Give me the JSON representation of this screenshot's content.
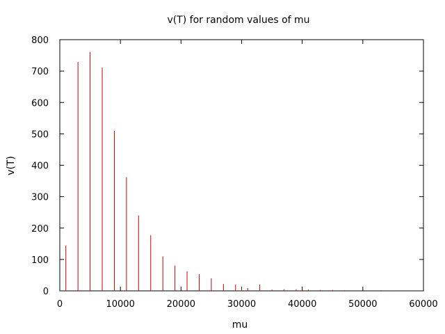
{
  "chart_data": {
    "type": "bar",
    "title": "v(T) for random values of mu",
    "xlabel": "mu",
    "ylabel": "v(T)",
    "xlim": [
      0,
      60000
    ],
    "ylim": [
      0,
      800
    ],
    "xticks": [
      0,
      10000,
      20000,
      30000,
      40000,
      50000,
      60000
    ],
    "yticks": [
      0,
      100,
      200,
      300,
      400,
      500,
      600,
      700,
      800
    ],
    "grid": false,
    "bar_color": "#cc0000",
    "points": [
      {
        "x": 1000,
        "y": 145
      },
      {
        "x": 3000,
        "y": 729
      },
      {
        "x": 5000,
        "y": 761
      },
      {
        "x": 7000,
        "y": 711
      },
      {
        "x": 9000,
        "y": 510
      },
      {
        "x": 11000,
        "y": 362
      },
      {
        "x": 13000,
        "y": 240
      },
      {
        "x": 15000,
        "y": 177
      },
      {
        "x": 17000,
        "y": 110
      },
      {
        "x": 19000,
        "y": 81
      },
      {
        "x": 21000,
        "y": 62
      },
      {
        "x": 23000,
        "y": 53
      },
      {
        "x": 25000,
        "y": 40
      },
      {
        "x": 27000,
        "y": 22
      },
      {
        "x": 29000,
        "y": 20
      },
      {
        "x": 30000,
        "y": 10
      },
      {
        "x": 31000,
        "y": 9
      },
      {
        "x": 33000,
        "y": 20
      },
      {
        "x": 35000,
        "y": 4
      },
      {
        "x": 37000,
        "y": 5
      },
      {
        "x": 39000,
        "y": 5
      },
      {
        "x": 40000,
        "y": 6
      },
      {
        "x": 41000,
        "y": 4
      },
      {
        "x": 43000,
        "y": 3
      },
      {
        "x": 45000,
        "y": 3
      },
      {
        "x": 47000,
        "y": 2
      },
      {
        "x": 53000,
        "y": 2
      },
      {
        "x": 55000,
        "y": 1
      }
    ]
  }
}
